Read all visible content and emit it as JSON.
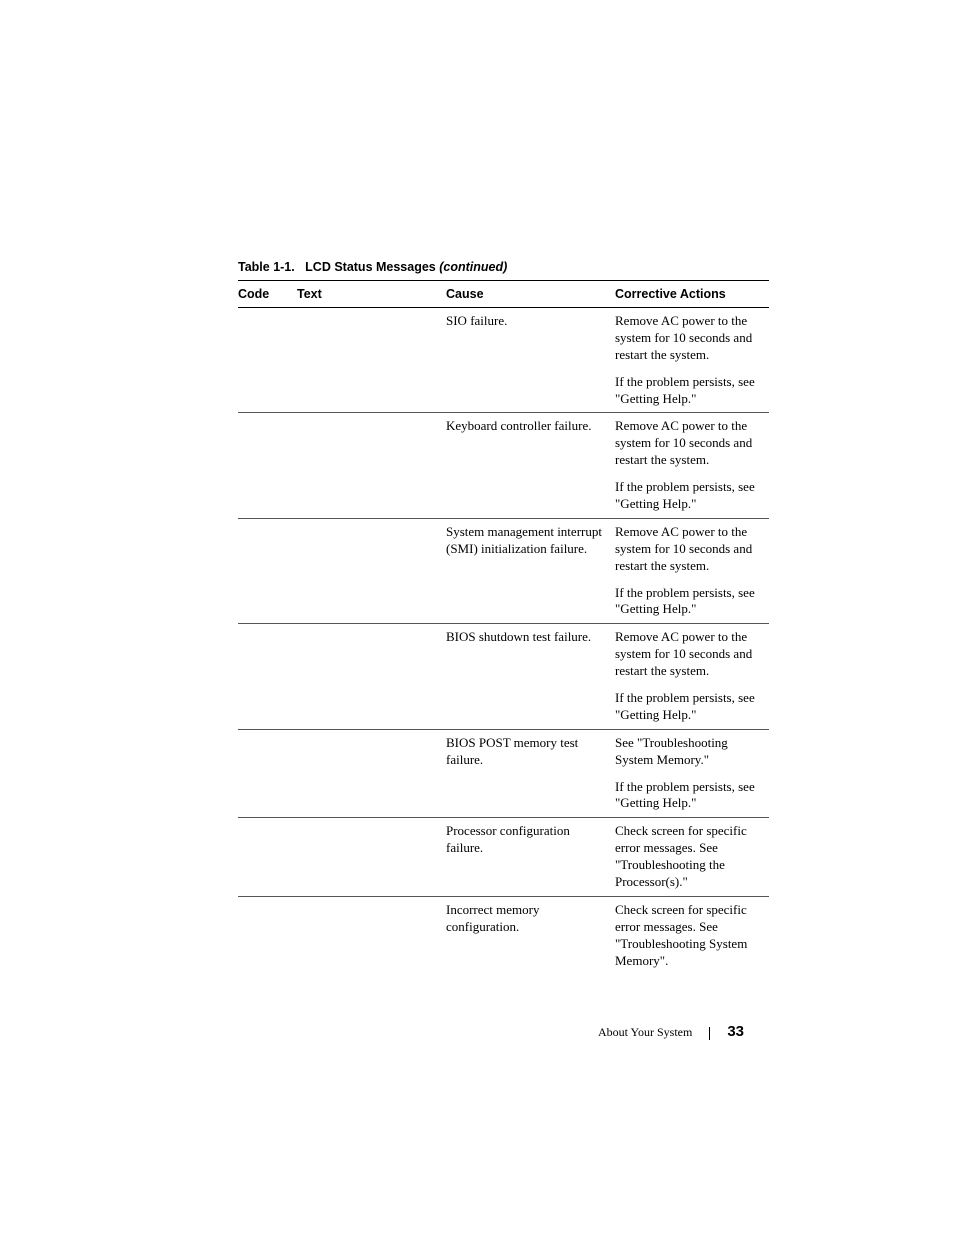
{
  "caption": {
    "label": "Table 1-1.",
    "title": "LCD Status Messages",
    "cont": "(continued)"
  },
  "headers": {
    "code": "Code",
    "text": "Text",
    "cause": "Cause",
    "action": "Corrective Actions"
  },
  "rows": [
    {
      "code": "",
      "text": "",
      "cause": "SIO failure.",
      "action": "Remove AC power to the system for 10 seconds and restart the system."
    },
    {
      "code": "",
      "text": "",
      "cause": "",
      "action": "If the problem persists, see \"Getting Help.\""
    },
    {
      "sep": true
    },
    {
      "code": "",
      "text": "",
      "cause": "Keyboard controller failure.",
      "action": "Remove AC power to the system for 10 seconds and restart the system."
    },
    {
      "code": "",
      "text": "",
      "cause": "",
      "action": "If the problem persists, see \"Getting Help.\""
    },
    {
      "sep": true
    },
    {
      "code": "",
      "text": "",
      "cause": "System management interrupt (SMI) initialization failure.",
      "action": "Remove AC power to the system for 10 seconds and restart the system."
    },
    {
      "code": "",
      "text": "",
      "cause": "",
      "action": "If the problem persists, see \"Getting Help.\""
    },
    {
      "sep": true
    },
    {
      "code": "",
      "text": "",
      "cause": "BIOS shutdown test failure.",
      "action": "Remove AC power to the system for 10 seconds and restart the system."
    },
    {
      "code": "",
      "text": "",
      "cause": "",
      "action": "If the problem persists, see \"Getting Help.\""
    },
    {
      "sep": true
    },
    {
      "code": "",
      "text": "",
      "cause": "BIOS POST memory test failure.",
      "action": "See \"Troubleshooting System Memory.\""
    },
    {
      "code": "",
      "text": "",
      "cause": "",
      "action": "If the problem persists, see \"Getting Help.\""
    },
    {
      "sep": true
    },
    {
      "code": "",
      "text": "",
      "cause": "Processor configuration failure.",
      "action": "Check screen for specific error messages. See \"Troubleshooting the Processor(s).\""
    },
    {
      "sep": true
    },
    {
      "code": "",
      "text": "",
      "cause": "Incorrect memory configuration.",
      "action": "Check screen for specific error messages. See \"Troubleshooting System Memory\"."
    }
  ],
  "footer": {
    "section": "About Your System",
    "page": "33"
  }
}
